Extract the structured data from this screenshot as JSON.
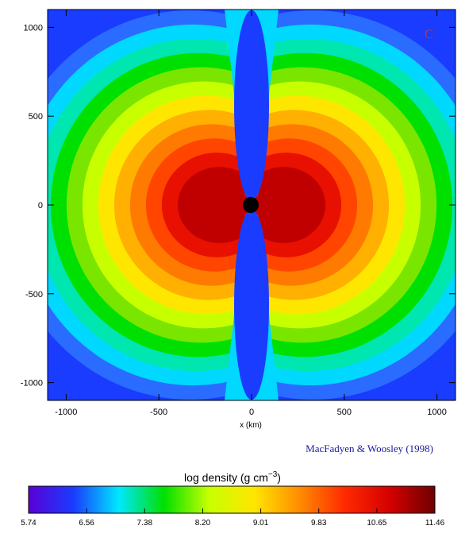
{
  "chart_data": {
    "type": "heatmap",
    "panel_label": "C",
    "xlabel": "x (km)",
    "ylabel": "",
    "xlim": [
      -1100,
      1100
    ],
    "ylim": [
      -1100,
      1100
    ],
    "x_ticks": [
      "-1000",
      "-500",
      "0",
      "500",
      "1000"
    ],
    "y_ticks": [
      "1000",
      "500",
      "0",
      "-500",
      "-1000"
    ],
    "x_tick_values": [
      -1000,
      -500,
      0,
      500,
      1000
    ],
    "y_tick_values": [
      1000,
      500,
      0,
      -500,
      -1000
    ],
    "credit": "MacFadyen & Woosley (1998)",
    "colorbar": {
      "title": "log density (g cm",
      "title_exponent": "−3",
      "title_close": ")",
      "min": 5.74,
      "max": 11.46,
      "ticks": [
        "5.74",
        "6.56",
        "7.38",
        "8.20",
        "9.01",
        "9.83",
        "10.65",
        "11.46"
      ]
    },
    "colors": {
      "black_hole": "#000000",
      "stops": [
        "#5a00d6",
        "#1a3cff",
        "#00e8ff",
        "#00e000",
        "#c8ff00",
        "#ffe600",
        "#ff8c00",
        "#ff2a00",
        "#d40000",
        "#6e0000"
      ]
    }
  }
}
